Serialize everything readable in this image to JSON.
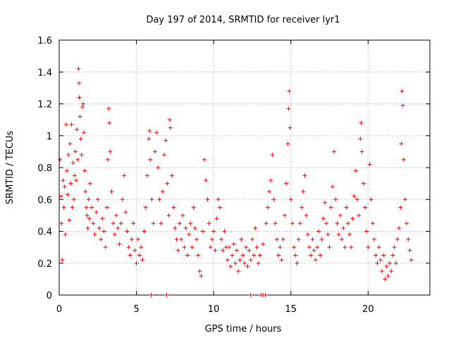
{
  "chart_data": {
    "type": "scatter",
    "title": "Day 197 of 2014, SRMTID for receiver lyr1",
    "xlabel": "GPS time / hours",
    "ylabel": "SRMTID / TECUs",
    "xlim": [
      0,
      24
    ],
    "ylim": [
      0,
      1.6
    ],
    "xticks": [
      "0",
      "5",
      "10",
      "15",
      "20"
    ],
    "xtick_values": [
      0,
      5,
      10,
      15,
      20
    ],
    "yticks": [
      "0",
      "0.2",
      "0.4",
      "0.6",
      "0.8",
      "1",
      "1.2",
      "1.4",
      "1.6"
    ],
    "ytick_values": [
      0,
      0.2,
      0.4,
      0.6,
      0.8,
      1.0,
      1.2,
      1.4,
      1.6
    ],
    "grid": true,
    "marker": "+",
    "color": "#ff0000",
    "series": [
      {
        "name": "SRMTID",
        "points": [
          [
            0.05,
            0.85
          ],
          [
            0.1,
            0.62
          ],
          [
            0.15,
            0.45
          ],
          [
            0.2,
            0.22
          ],
          [
            0.25,
            0.72
          ],
          [
            0.3,
            0.55
          ],
          [
            0.35,
            0.68
          ],
          [
            0.4,
            0.38
          ],
          [
            0.45,
            1.07
          ],
          [
            0.5,
            0.78
          ],
          [
            0.55,
            0.63
          ],
          [
            0.6,
            0.88
          ],
          [
            0.65,
            0.47
          ],
          [
            0.7,
            0.95
          ],
          [
            0.75,
            0.7
          ],
          [
            0.8,
            1.07
          ],
          [
            0.85,
            0.55
          ],
          [
            0.9,
            0.83
          ],
          [
            0.95,
            0.6
          ],
          [
            1.0,
            0.75
          ],
          [
            1.05,
            0.9
          ],
          [
            1.1,
            0.72
          ],
          [
            1.15,
            1.04
          ],
          [
            1.2,
            0.85
          ],
          [
            1.25,
            1.42
          ],
          [
            1.28,
            1.33
          ],
          [
            1.3,
            1.24
          ],
          [
            1.35,
            1.12
          ],
          [
            1.4,
            0.98
          ],
          [
            1.45,
            0.88
          ],
          [
            1.5,
            1.18
          ],
          [
            1.55,
            1.2
          ],
          [
            1.6,
            1.02
          ],
          [
            1.65,
            0.78
          ],
          [
            1.7,
            0.65
          ],
          [
            1.75,
            0.55
          ],
          [
            1.8,
            0.5
          ],
          [
            1.85,
            0.42
          ],
          [
            1.9,
            0.6
          ],
          [
            1.95,
            0.48
          ],
          [
            2.0,
            0.7
          ],
          [
            2.1,
            0.55
          ],
          [
            2.2,
            0.45
          ],
          [
            2.3,
            0.38
          ],
          [
            2.4,
            0.52
          ],
          [
            2.5,
            0.6
          ],
          [
            2.6,
            0.42
          ],
          [
            2.7,
            0.35
          ],
          [
            2.8,
            0.48
          ],
          [
            2.9,
            0.4
          ],
          [
            3.0,
            0.3
          ],
          [
            3.1,
            0.55
          ],
          [
            3.15,
            0.85
          ],
          [
            3.2,
            1.17
          ],
          [
            3.25,
            1.08
          ],
          [
            3.3,
            0.9
          ],
          [
            3.4,
            0.65
          ],
          [
            3.5,
            0.45
          ],
          [
            3.6,
            0.38
          ],
          [
            3.7,
            0.5
          ],
          [
            3.8,
            0.42
          ],
          [
            3.9,
            0.32
          ],
          [
            4.0,
            0.45
          ],
          [
            4.1,
            0.6
          ],
          [
            4.2,
            0.75
          ],
          [
            4.3,
            0.52
          ],
          [
            4.4,
            0.4
          ],
          [
            4.5,
            0.3
          ],
          [
            4.6,
            0.25
          ],
          [
            4.7,
            0.35
          ],
          [
            4.8,
            0.45
          ],
          [
            4.9,
            0.28
          ],
          [
            5.0,
            0.2
          ],
          [
            5.1,
            0.35
          ],
          [
            5.2,
            0.25
          ],
          [
            5.3,
            0.3
          ],
          [
            5.4,
            0.22
          ],
          [
            5.5,
            0.4
          ],
          [
            5.6,
            0.55
          ],
          [
            5.7,
            0.75
          ],
          [
            5.8,
            0.98
          ],
          [
            5.85,
            1.03
          ],
          [
            5.9,
            0.85
          ],
          [
            6.0,
            0.6
          ],
          [
            6.1,
            0.45
          ],
          [
            6.2,
            0.9
          ],
          [
            6.3,
            1.02
          ],
          [
            6.4,
            0.8
          ],
          [
            6.5,
            0.6
          ],
          [
            6.6,
            0.45
          ],
          [
            6.7,
            0.65
          ],
          [
            6.8,
            0.88
          ],
          [
            6.9,
            0.97
          ],
          [
            7.0,
            0.7
          ],
          [
            7.1,
            0.5
          ],
          [
            7.15,
            1.1
          ],
          [
            7.2,
            1.05
          ],
          [
            7.3,
            0.75
          ],
          [
            7.4,
            0.55
          ],
          [
            7.5,
            0.42
          ],
          [
            7.6,
            0.35
          ],
          [
            7.7,
            0.28
          ],
          [
            7.8,
            0.45
          ],
          [
            7.9,
            0.35
          ],
          [
            8.0,
            0.5
          ],
          [
            8.1,
            0.3
          ],
          [
            8.2,
            0.42
          ],
          [
            8.3,
            0.25
          ],
          [
            8.4,
            0.38
          ],
          [
            8.5,
            0.45
          ],
          [
            8.6,
            0.3
          ],
          [
            8.7,
            0.55
          ],
          [
            8.8,
            0.42
          ],
          [
            8.9,
            0.35
          ],
          [
            9.0,
            0.25
          ],
          [
            9.1,
            0.15
          ],
          [
            9.2,
            0.12
          ],
          [
            9.3,
            0.4
          ],
          [
            9.4,
            0.85
          ],
          [
            9.5,
            0.72
          ],
          [
            9.6,
            0.6
          ],
          [
            9.7,
            0.45
          ],
          [
            9.8,
            0.3
          ],
          [
            9.9,
            0.35
          ],
          [
            10.0,
            0.4
          ],
          [
            10.1,
            0.28
          ],
          [
            10.2,
            0.48
          ],
          [
            10.3,
            0.6
          ],
          [
            10.4,
            0.55
          ],
          [
            10.5,
            0.35
          ],
          [
            10.6,
            0.28
          ],
          [
            10.7,
            0.4
          ],
          [
            10.8,
            0.3
          ],
          [
            10.9,
            0.22
          ],
          [
            11.0,
            0.3
          ],
          [
            11.1,
            0.18
          ],
          [
            11.2,
            0.25
          ],
          [
            11.3,
            0.32
          ],
          [
            11.4,
            0.2
          ],
          [
            11.5,
            0.28
          ],
          [
            11.6,
            0.15
          ],
          [
            11.7,
            0.22
          ],
          [
            11.8,
            0.35
          ],
          [
            11.9,
            0.25
          ],
          [
            12.0,
            0.2
          ],
          [
            12.1,
            0.3
          ],
          [
            12.2,
            0.18
          ],
          [
            12.3,
            0.28
          ],
          [
            12.4,
            0.22
          ],
          [
            12.5,
            0.35
          ],
          [
            12.6,
            0.25
          ],
          [
            12.7,
            0.42
          ],
          [
            12.8,
            0.3
          ],
          [
            12.9,
            0.2
          ],
          [
            13.0,
            0.25
          ],
          [
            13.2,
            0.32
          ],
          [
            13.4,
            0.45
          ],
          [
            13.5,
            0.55
          ],
          [
            13.6,
            0.65
          ],
          [
            13.7,
            0.72
          ],
          [
            13.8,
            0.88
          ],
          [
            13.9,
            0.6
          ],
          [
            14.0,
            0.45
          ],
          [
            14.1,
            0.35
          ],
          [
            14.2,
            0.25
          ],
          [
            14.3,
            0.3
          ],
          [
            14.4,
            0.22
          ],
          [
            14.5,
            0.35
          ],
          [
            14.6,
            0.5
          ],
          [
            14.7,
            0.7
          ],
          [
            14.8,
            0.95
          ],
          [
            14.85,
            1.17
          ],
          [
            14.9,
            1.28
          ],
          [
            14.95,
            1.05
          ],
          [
            15.0,
            0.6
          ],
          [
            15.1,
            0.45
          ],
          [
            15.2,
            0.3
          ],
          [
            15.3,
            0.25
          ],
          [
            15.4,
            0.2
          ],
          [
            15.5,
            0.35
          ],
          [
            15.6,
            0.45
          ],
          [
            15.7,
            0.55
          ],
          [
            15.8,
            0.65
          ],
          [
            15.9,
            0.75
          ],
          [
            16.0,
            0.5
          ],
          [
            16.1,
            0.38
          ],
          [
            16.2,
            0.3
          ],
          [
            16.3,
            0.25
          ],
          [
            16.4,
            0.35
          ],
          [
            16.5,
            0.28
          ],
          [
            16.6,
            0.22
          ],
          [
            16.7,
            0.3
          ],
          [
            16.8,
            0.4
          ],
          [
            16.9,
            0.25
          ],
          [
            17.0,
            0.35
          ],
          [
            17.1,
            0.48
          ],
          [
            17.2,
            0.58
          ],
          [
            17.3,
            0.45
          ],
          [
            17.4,
            0.38
          ],
          [
            17.5,
            0.3
          ],
          [
            17.6,
            0.55
          ],
          [
            17.7,
            0.68
          ],
          [
            17.8,
            0.9
          ],
          [
            17.9,
            0.6
          ],
          [
            18.0,
            0.45
          ],
          [
            18.1,
            0.38
          ],
          [
            18.2,
            0.5
          ],
          [
            18.3,
            0.35
          ],
          [
            18.4,
            0.42
          ],
          [
            18.5,
            0.3
          ],
          [
            18.6,
            0.55
          ],
          [
            18.7,
            0.45
          ],
          [
            18.8,
            0.38
          ],
          [
            18.9,
            0.3
          ],
          [
            19.0,
            0.48
          ],
          [
            19.1,
            0.62
          ],
          [
            19.2,
            0.78
          ],
          [
            19.3,
            0.6
          ],
          [
            19.4,
            0.5
          ],
          [
            19.5,
            0.98
          ],
          [
            19.55,
            1.08
          ],
          [
            19.6,
            0.9
          ],
          [
            19.7,
            0.7
          ],
          [
            19.8,
            0.55
          ],
          [
            19.9,
            0.4
          ],
          [
            20.0,
            0.3
          ],
          [
            20.1,
            0.82
          ],
          [
            20.2,
            0.6
          ],
          [
            20.3,
            0.45
          ],
          [
            20.4,
            0.35
          ],
          [
            20.5,
            0.25
          ],
          [
            20.6,
            0.2
          ],
          [
            20.7,
            0.3
          ],
          [
            20.8,
            0.22
          ],
          [
            20.9,
            0.15
          ],
          [
            21.0,
            0.25
          ],
          [
            21.1,
            0.1
          ],
          [
            21.2,
            0.18
          ],
          [
            21.3,
            0.12
          ],
          [
            21.4,
            0.2
          ],
          [
            21.5,
            0.15
          ],
          [
            21.6,
            0.25
          ],
          [
            21.7,
            0.3
          ],
          [
            21.8,
            0.2
          ],
          [
            21.9,
            0.35
          ],
          [
            22.0,
            0.42
          ],
          [
            22.1,
            0.55
          ],
          [
            22.15,
            0.95
          ],
          [
            22.2,
            1.28
          ],
          [
            22.25,
            1.19
          ],
          [
            22.3,
            0.85
          ],
          [
            22.4,
            0.6
          ],
          [
            22.5,
            0.45
          ],
          [
            22.6,
            0.35
          ],
          [
            22.7,
            0.28
          ],
          [
            22.8,
            0.22
          ]
        ],
        "baseline_markers": [
          5.95,
          6.95,
          12.4,
          13.05,
          13.2,
          13.35
        ]
      }
    ]
  }
}
